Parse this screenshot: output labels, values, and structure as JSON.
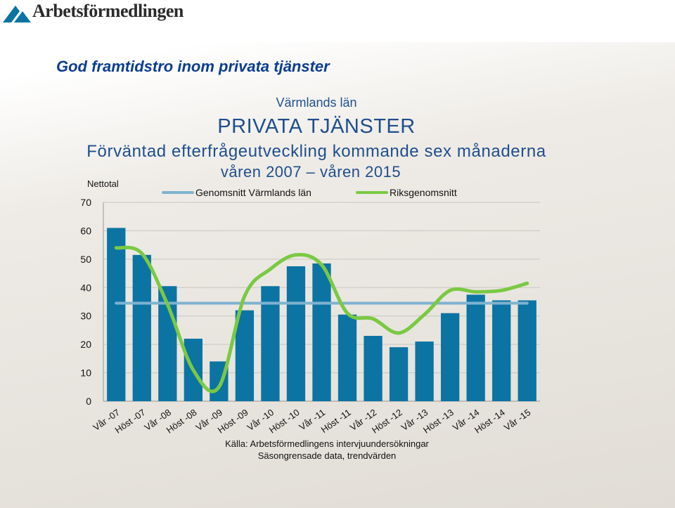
{
  "header": {
    "logo_text": "Arbetsförmedlingen",
    "slide_title": "God framtidstro inom privata tjänster"
  },
  "chart_data": {
    "type": "bar",
    "subtitle_region": "Värmlands län",
    "title": "PRIVATA TJÄNSTER",
    "subtitle": "Förväntad efterfrågeutveckling kommande sex månaderna",
    "period": "våren 2007 – våren 2015",
    "ylabel": "Nettotal",
    "ylim": [
      0,
      70
    ],
    "yticks": [
      0,
      10,
      20,
      30,
      40,
      50,
      60,
      70
    ],
    "grid": true,
    "legend_position": "top",
    "categories": [
      "Vår -07",
      "Höst -07",
      "Vår -08",
      "Höst -08",
      "Vår -09",
      "Höst -09",
      "Vår -10",
      "Höst -10",
      "Vår -11",
      "Höst -11",
      "Vår -12",
      "Höst -12",
      "Vår -13",
      "Höst -13",
      "Vår -14",
      "Höst -14",
      "Vår -15"
    ],
    "series": [
      {
        "name": "",
        "kind": "bar",
        "color": "#0b74a3",
        "values": [
          61,
          51.5,
          40.5,
          22,
          14,
          32,
          40.5,
          47.5,
          48.5,
          30.5,
          23,
          19,
          21,
          31,
          37.5,
          35.5,
          35.5
        ]
      },
      {
        "name": "Genomsnitt Värmlands län",
        "kind": "line",
        "color": "#7fb3d0",
        "values": [
          34.5,
          34.5,
          34.5,
          34.5,
          34.5,
          34.5,
          34.5,
          34.5,
          34.5,
          34.5,
          34.5,
          34.5,
          34.5,
          34.5,
          34.5,
          34.5,
          34.5
        ]
      },
      {
        "name": "Riksgenomsnitt",
        "kind": "line",
        "color": "#7ac943",
        "values": [
          54,
          52,
          34,
          11,
          5,
          37,
          46.5,
          51.5,
          48,
          31,
          29,
          24,
          30.5,
          39,
          38.5,
          39,
          41.5
        ]
      }
    ],
    "source_lines": [
      "Källa: Arbetsförmedlingens intervjuundersökningar",
      "Säsongrensade data, trendvärden"
    ]
  }
}
